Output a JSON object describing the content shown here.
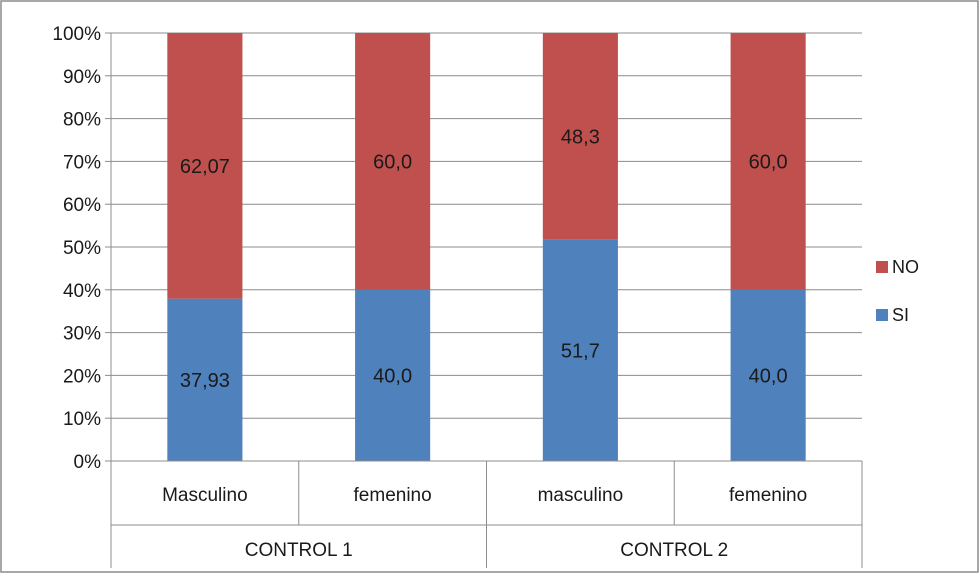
{
  "chart_data": {
    "type": "bar",
    "stacked": true,
    "percent_stacked": true,
    "groups": [
      {
        "label": "CONTROL 1",
        "categories": [
          "Masculino",
          "femenino"
        ]
      },
      {
        "label": "CONTROL 2",
        "categories": [
          "masculino",
          "femenino"
        ]
      }
    ],
    "categories": [
      "Masculino",
      "femenino",
      "masculino",
      "femenino"
    ],
    "series": [
      {
        "name": "SI",
        "color": "#4F81BD",
        "values": [
          37.93,
          40.0,
          51.7,
          40.0
        ],
        "labels": [
          "37,93",
          "40,0",
          "51,7",
          "40,0"
        ]
      },
      {
        "name": "NO",
        "color": "#C0504D",
        "values": [
          62.07,
          60.0,
          48.3,
          60.0
        ],
        "labels": [
          "62,07",
          "60,0",
          "48,3",
          "60,0"
        ]
      }
    ],
    "yticks": [
      "0%",
      "10%",
      "20%",
      "30%",
      "40%",
      "50%",
      "60%",
      "70%",
      "80%",
      "90%",
      "100%"
    ],
    "ylim": [
      0,
      100
    ],
    "legend": {
      "position": "right",
      "order": [
        "NO",
        "SI"
      ]
    },
    "grid": true,
    "title": "",
    "xlabel": "",
    "ylabel": ""
  }
}
